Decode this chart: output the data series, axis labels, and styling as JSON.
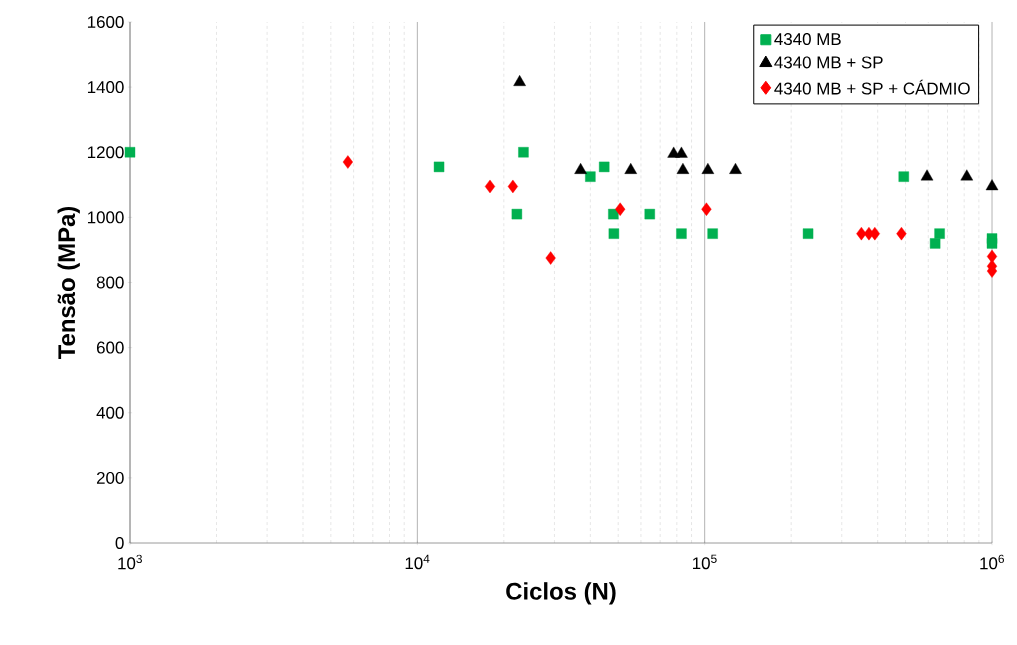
{
  "chart_data": {
    "type": "scatter",
    "xlabel": "Ciclos (N)",
    "ylabel": "Tensão (MPa)",
    "log": "x",
    "grid": "x",
    "legend": "top right",
    "xlim": [
      1000,
      1000000
    ],
    "ylim": [
      0,
      1600
    ],
    "xticks": [
      {
        "value": 1000,
        "label": "10$^{3}$"
      },
      {
        "value": 10000,
        "label": "10$^{4}$"
      },
      {
        "value": 100000,
        "label": "10$^{5}$"
      },
      {
        "value": 1000000,
        "label": "10$^{6}$"
      }
    ],
    "yticks": [
      0,
      200,
      400,
      600,
      800,
      1000,
      1200,
      1400,
      1600
    ],
    "series": [
      {
        "name": "4340 MB",
        "color": "#00b050",
        "marker": "square",
        "x": [
          1000,
          11900,
          22200,
          23400,
          40000,
          44700,
          48100,
          48300,
          64400,
          83000,
          106600,
          229000,
          493000,
          634000,
          657000,
          1000000,
          1000000
        ],
        "values": [
          1200,
          1155,
          1010,
          1200,
          1125,
          1155,
          1010,
          950,
          1010,
          950,
          950,
          950,
          1125,
          920,
          950,
          935,
          920
        ]
      },
      {
        "name": "4340 MB + SP",
        "color": "#000000",
        "marker": "triangle",
        "x": [
          22700,
          37000,
          55300,
          78000,
          83000,
          84000,
          102600,
          128000,
          594000,
          817000,
          1000000
        ],
        "values": [
          1415,
          1145,
          1145,
          1195,
          1195,
          1145,
          1145,
          1145,
          1125,
          1125,
          1095
        ]
      },
      {
        "name": "4340 MB + SP + CÁDMIO",
        "color": "#ff0000",
        "marker": "diamond",
        "x": [
          5730,
          17900,
          21500,
          29100,
          50800,
          101400,
          351000,
          373000,
          391000,
          484000,
          1000000,
          1000000,
          1000000
        ],
        "values": [
          1170,
          1095,
          1095,
          875,
          1025,
          1025,
          950,
          950,
          950,
          950,
          880,
          850,
          835
        ]
      }
    ]
  }
}
